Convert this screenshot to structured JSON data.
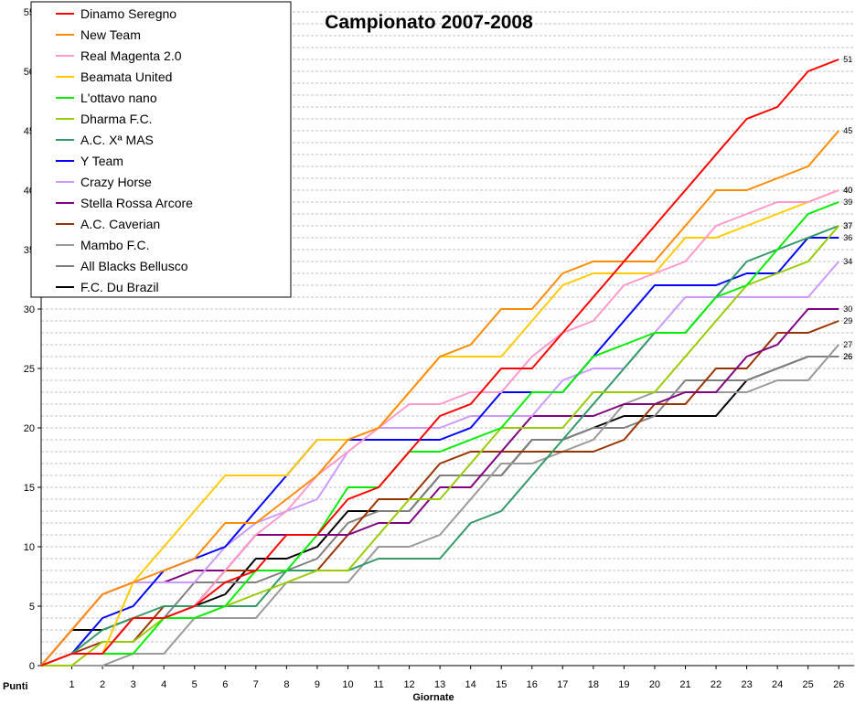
{
  "chart_data": {
    "type": "line",
    "title": "Campionato 2007-2008",
    "xlabel": "Giornate",
    "ylabel": "Punti",
    "x": [
      0,
      1,
      2,
      3,
      4,
      5,
      6,
      7,
      8,
      9,
      10,
      11,
      12,
      13,
      14,
      15,
      16,
      17,
      18,
      19,
      20,
      21,
      22,
      23,
      24,
      25,
      26
    ],
    "xtick_labels": [
      "1",
      "2",
      "3",
      "4",
      "5",
      "6",
      "7",
      "8",
      "9",
      "10",
      "11",
      "12",
      "13",
      "14",
      "15",
      "16",
      "17",
      "18",
      "19",
      "20",
      "21",
      "22",
      "23",
      "24",
      "25",
      "26"
    ],
    "ylim": [
      0,
      55
    ],
    "yticks": [
      0,
      5,
      10,
      15,
      20,
      25,
      30,
      35,
      40,
      45,
      50,
      55
    ],
    "grid": "horizontal dashed",
    "legend_position": "top-left",
    "series": [
      {
        "name": "Dinamo Seregno",
        "color": "#ff0000",
        "values": [
          0,
          1,
          1,
          4,
          4,
          5,
          7,
          8,
          11,
          11,
          14,
          15,
          18,
          21,
          22,
          25,
          25,
          28,
          31,
          34,
          37,
          40,
          43,
          46,
          47,
          50,
          51
        ],
        "end_label": "51"
      },
      {
        "name": "New Team",
        "color": "#ff8c00",
        "values": [
          0,
          3,
          6,
          7,
          8,
          9,
          12,
          12,
          14,
          16,
          19,
          20,
          23,
          26,
          27,
          30,
          30,
          33,
          34,
          34,
          34,
          37,
          40,
          40,
          41,
          42,
          45
        ],
        "end_label": "45"
      },
      {
        "name": "Real Magenta 2.0",
        "color": "#ff99cc",
        "values": [
          0,
          1,
          1,
          4,
          4,
          5,
          8,
          11,
          13,
          16,
          18,
          20,
          22,
          22,
          23,
          23,
          26,
          28,
          29,
          32,
          33,
          34,
          37,
          38,
          39,
          39,
          40
        ],
        "end_label": "40"
      },
      {
        "name": "Beamata United",
        "color": "#ffcc00",
        "values": [
          0,
          1,
          1,
          7,
          10,
          13,
          16,
          16,
          16,
          19,
          19,
          20,
          23,
          26,
          26,
          26,
          29,
          32,
          33,
          33,
          33,
          36,
          36,
          37,
          38,
          39,
          40
        ],
        "end_label": "40"
      },
      {
        "name": "L'ottavo nano",
        "color": "#00ee00",
        "values": [
          0,
          1,
          1,
          1,
          4,
          4,
          5,
          8,
          8,
          11,
          15,
          15,
          18,
          18,
          19,
          20,
          23,
          23,
          26,
          27,
          28,
          28,
          31,
          32,
          35,
          38,
          39
        ],
        "end_label": "39"
      },
      {
        "name": "Dharma F.C.",
        "color": "#99cc00",
        "values": [
          0,
          0,
          2,
          2,
          4,
          4,
          5,
          6,
          7,
          8,
          8,
          11,
          14,
          14,
          17,
          20,
          20,
          20,
          23,
          23,
          23,
          26,
          29,
          32,
          33,
          34,
          37
        ],
        "end_label": "37"
      },
      {
        "name": "A.C. Xª MAS",
        "color": "#339966",
        "values": [
          0,
          1,
          3,
          4,
          5,
          5,
          5,
          5,
          8,
          8,
          8,
          9,
          9,
          9,
          12,
          13,
          16,
          19,
          22,
          25,
          28,
          28,
          31,
          34,
          35,
          36,
          37
        ],
        "end_label": "37"
      },
      {
        "name": "Y Team",
        "color": "#0000ff",
        "values": [
          0,
          1,
          4,
          5,
          8,
          9,
          10,
          13,
          16,
          19,
          19,
          19,
          19,
          19,
          20,
          23,
          23,
          23,
          26,
          29,
          32,
          32,
          32,
          33,
          33,
          36,
          36
        ],
        "end_label": "36"
      },
      {
        "name": "Crazy Horse",
        "color": "#cc99ff",
        "values": [
          0,
          3,
          6,
          7,
          7,
          7,
          10,
          12,
          13,
          14,
          18,
          20,
          20,
          20,
          21,
          21,
          21,
          24,
          25,
          25,
          28,
          31,
          31,
          31,
          31,
          31,
          34
        ],
        "end_label": "34"
      },
      {
        "name": "Stella Rossa Arcore",
        "color": "#800080",
        "values": [
          0,
          3,
          6,
          7,
          7,
          8,
          8,
          11,
          11,
          11,
          11,
          12,
          12,
          15,
          15,
          18,
          21,
          21,
          21,
          22,
          22,
          23,
          23,
          26,
          27,
          30,
          30
        ],
        "end_label": "30"
      },
      {
        "name": "A.C. Caverian",
        "color": "#993300",
        "values": [
          0,
          1,
          2,
          2,
          5,
          5,
          8,
          8,
          8,
          8,
          11,
          14,
          14,
          17,
          18,
          18,
          18,
          18,
          18,
          19,
          22,
          22,
          25,
          25,
          28,
          28,
          29
        ],
        "end_label": "29"
      },
      {
        "name": "Mambo F.C.",
        "color": "#999999",
        "values": [
          0,
          0,
          0,
          1,
          1,
          4,
          4,
          4,
          7,
          7,
          7,
          10,
          10,
          11,
          14,
          17,
          17,
          18,
          19,
          22,
          23,
          23,
          23,
          23,
          24,
          24,
          27
        ],
        "end_label": "27"
      },
      {
        "name": "All Blacks Bellusco",
        "color": "#808080",
        "values": [
          0,
          1,
          1,
          4,
          4,
          7,
          7,
          7,
          8,
          9,
          12,
          13,
          13,
          16,
          16,
          16,
          19,
          19,
          20,
          20,
          21,
          24,
          24,
          24,
          25,
          26,
          26
        ],
        "end_label": "26"
      },
      {
        "name": "F.C. Du Brazil",
        "color": "#000000",
        "values": [
          0,
          3,
          3,
          4,
          4,
          5,
          6,
          9,
          9,
          10,
          13,
          13,
          13,
          16,
          16,
          16,
          19,
          19,
          20,
          21,
          21,
          21,
          21,
          24,
          25,
          26,
          26
        ],
        "end_label": "26"
      }
    ]
  }
}
